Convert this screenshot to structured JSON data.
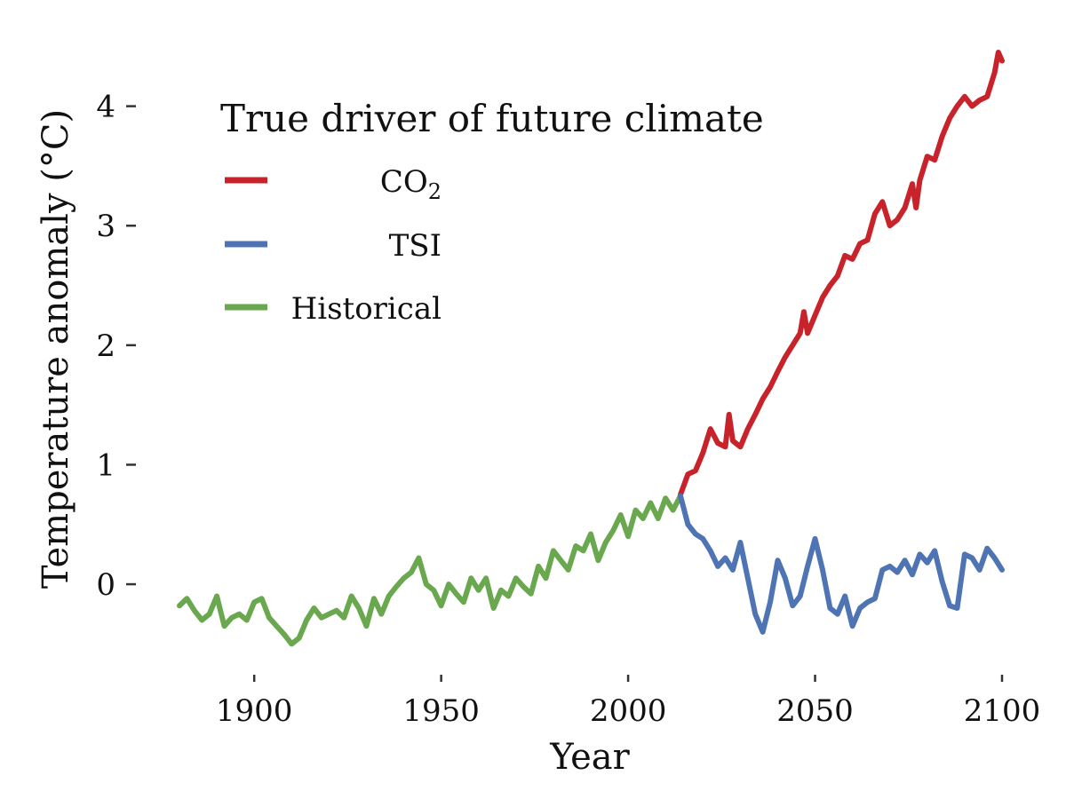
{
  "chart_data": {
    "type": "line",
    "xlabel": "Year",
    "ylabel": "Temperature anomaly  (°C)",
    "xlim": [
      1880,
      2100
    ],
    "ylim": [
      -0.72,
      4.48
    ],
    "xticks": [
      1900,
      1950,
      2000,
      2050,
      2100
    ],
    "yticks": [
      0,
      1,
      2,
      3,
      4
    ],
    "grid": false,
    "legend": {
      "title": "True driver of future climate",
      "placement": "top-left",
      "entries": [
        {
          "label": "CO",
          "subscript": "2",
          "color": "#c8232a"
        },
        {
          "label": "TSI",
          "subscript": "",
          "color": "#4f74b3"
        },
        {
          "label": "Historical",
          "subscript": "",
          "color": "#6aa84f"
        }
      ]
    },
    "series": [
      {
        "name": "Historical",
        "color": "#6aa84f",
        "x": [
          1880,
          1882,
          1884,
          1886,
          1888,
          1890,
          1892,
          1894,
          1896,
          1898,
          1900,
          1902,
          1904,
          1906,
          1908,
          1910,
          1912,
          1914,
          1916,
          1918,
          1920,
          1922,
          1924,
          1926,
          1928,
          1930,
          1932,
          1934,
          1936,
          1938,
          1940,
          1942,
          1944,
          1946,
          1948,
          1950,
          1952,
          1954,
          1956,
          1958,
          1960,
          1962,
          1964,
          1966,
          1968,
          1970,
          1972,
          1974,
          1976,
          1978,
          1980,
          1982,
          1984,
          1986,
          1988,
          1990,
          1992,
          1994,
          1996,
          1998,
          2000,
          2002,
          2004,
          2006,
          2008,
          2010,
          2012,
          2014
        ],
        "y": [
          -0.18,
          -0.12,
          -0.22,
          -0.3,
          -0.25,
          -0.1,
          -0.35,
          -0.28,
          -0.25,
          -0.3,
          -0.15,
          -0.12,
          -0.28,
          -0.35,
          -0.42,
          -0.5,
          -0.45,
          -0.3,
          -0.2,
          -0.28,
          -0.25,
          -0.22,
          -0.28,
          -0.1,
          -0.2,
          -0.35,
          -0.12,
          -0.25,
          -0.1,
          -0.02,
          0.05,
          0.1,
          0.22,
          0.0,
          -0.05,
          -0.18,
          0.0,
          -0.08,
          -0.15,
          0.05,
          -0.05,
          0.05,
          -0.2,
          -0.05,
          -0.1,
          0.05,
          -0.02,
          -0.08,
          0.15,
          0.05,
          0.28,
          0.2,
          0.12,
          0.32,
          0.28,
          0.42,
          0.2,
          0.35,
          0.45,
          0.58,
          0.4,
          0.62,
          0.55,
          0.68,
          0.55,
          0.72,
          0.62,
          0.74
        ]
      },
      {
        "name": "CO2",
        "color": "#c8232a",
        "x": [
          2014,
          2016,
          2018,
          2020,
          2022,
          2024,
          2026,
          2027,
          2028,
          2030,
          2032,
          2034,
          2036,
          2038,
          2040,
          2042,
          2044,
          2046,
          2047,
          2048,
          2050,
          2052,
          2054,
          2056,
          2058,
          2060,
          2062,
          2064,
          2066,
          2068,
          2070,
          2072,
          2074,
          2076,
          2077,
          2078,
          2080,
          2082,
          2084,
          2086,
          2088,
          2090,
          2092,
          2094,
          2096,
          2098,
          2099,
          2100
        ],
        "y": [
          0.75,
          0.92,
          0.95,
          1.1,
          1.3,
          1.18,
          1.15,
          1.42,
          1.2,
          1.15,
          1.3,
          1.42,
          1.55,
          1.65,
          1.78,
          1.9,
          2.0,
          2.1,
          2.28,
          2.1,
          2.25,
          2.4,
          2.5,
          2.58,
          2.75,
          2.72,
          2.85,
          2.88,
          3.1,
          3.2,
          3.0,
          3.05,
          3.15,
          3.35,
          3.15,
          3.38,
          3.58,
          3.55,
          3.75,
          3.9,
          4.0,
          4.08,
          4.0,
          4.05,
          4.08,
          4.28,
          4.45,
          4.38
        ]
      },
      {
        "name": "TSI",
        "color": "#4f74b3",
        "x": [
          2014,
          2016,
          2018,
          2020,
          2022,
          2024,
          2026,
          2028,
          2030,
          2032,
          2034,
          2036,
          2038,
          2040,
          2042,
          2044,
          2046,
          2048,
          2050,
          2052,
          2054,
          2056,
          2058,
          2060,
          2062,
          2064,
          2066,
          2068,
          2070,
          2072,
          2074,
          2076,
          2078,
          2080,
          2082,
          2084,
          2086,
          2088,
          2090,
          2092,
          2094,
          2096,
          2098,
          2100
        ],
        "y": [
          0.74,
          0.5,
          0.42,
          0.38,
          0.28,
          0.15,
          0.22,
          0.12,
          0.35,
          0.05,
          -0.25,
          -0.4,
          -0.15,
          0.2,
          0.05,
          -0.18,
          -0.1,
          0.15,
          0.38,
          0.12,
          -0.2,
          -0.25,
          -0.1,
          -0.35,
          -0.2,
          -0.15,
          -0.12,
          0.12,
          0.15,
          0.1,
          0.2,
          0.08,
          0.25,
          0.18,
          0.28,
          0.02,
          -0.18,
          -0.2,
          0.25,
          0.22,
          0.12,
          0.3,
          0.22,
          0.12
        ]
      }
    ]
  }
}
